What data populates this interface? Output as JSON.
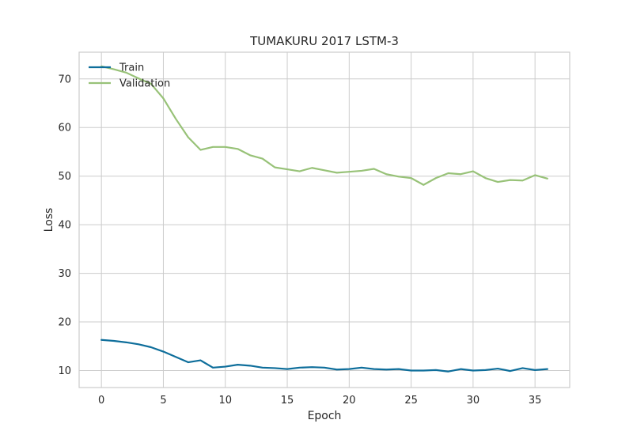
{
  "chart_data": {
    "type": "line",
    "title": "TUMAKURU 2017 LSTM-3",
    "xlabel": "Epoch",
    "ylabel": "Loss",
    "xlim": [
      -1.8,
      37.8
    ],
    "ylim": [
      6.5,
      75.5
    ],
    "xticks": [
      0,
      5,
      10,
      15,
      20,
      25,
      30,
      35
    ],
    "yticks": [
      10,
      20,
      30,
      40,
      50,
      60,
      70
    ],
    "grid": true,
    "legend": "top-left",
    "x": [
      0,
      1,
      2,
      3,
      4,
      5,
      6,
      7,
      8,
      9,
      10,
      11,
      12,
      13,
      14,
      15,
      16,
      17,
      18,
      19,
      20,
      21,
      22,
      23,
      24,
      25,
      26,
      27,
      28,
      29,
      30,
      31,
      32,
      33,
      34,
      35,
      36
    ],
    "series": [
      {
        "name": "Train",
        "color": "#0e6e9b",
        "values": [
          16.3,
          16.1,
          15.8,
          15.4,
          14.8,
          13.9,
          12.8,
          11.7,
          12.1,
          10.6,
          10.8,
          11.2,
          11.0,
          10.6,
          10.5,
          10.3,
          10.6,
          10.7,
          10.6,
          10.2,
          10.3,
          10.6,
          10.3,
          10.2,
          10.3,
          10.0,
          10.0,
          10.1,
          9.8,
          10.3,
          10.0,
          10.1,
          10.4,
          9.9,
          10.5,
          10.1,
          10.3
        ]
      },
      {
        "name": "Validation",
        "color": "#98c278",
        "values": [
          72.6,
          72.0,
          71.3,
          70.1,
          69.0,
          66.0,
          61.8,
          58.0,
          55.4,
          56.0,
          56.0,
          55.6,
          54.3,
          53.6,
          51.8,
          51.4,
          51.0,
          51.7,
          51.2,
          50.7,
          50.9,
          51.1,
          51.5,
          50.4,
          49.9,
          49.6,
          48.2,
          49.6,
          50.6,
          50.4,
          51.0,
          49.6,
          48.8,
          49.2,
          49.1,
          50.2,
          49.5
        ]
      }
    ]
  }
}
